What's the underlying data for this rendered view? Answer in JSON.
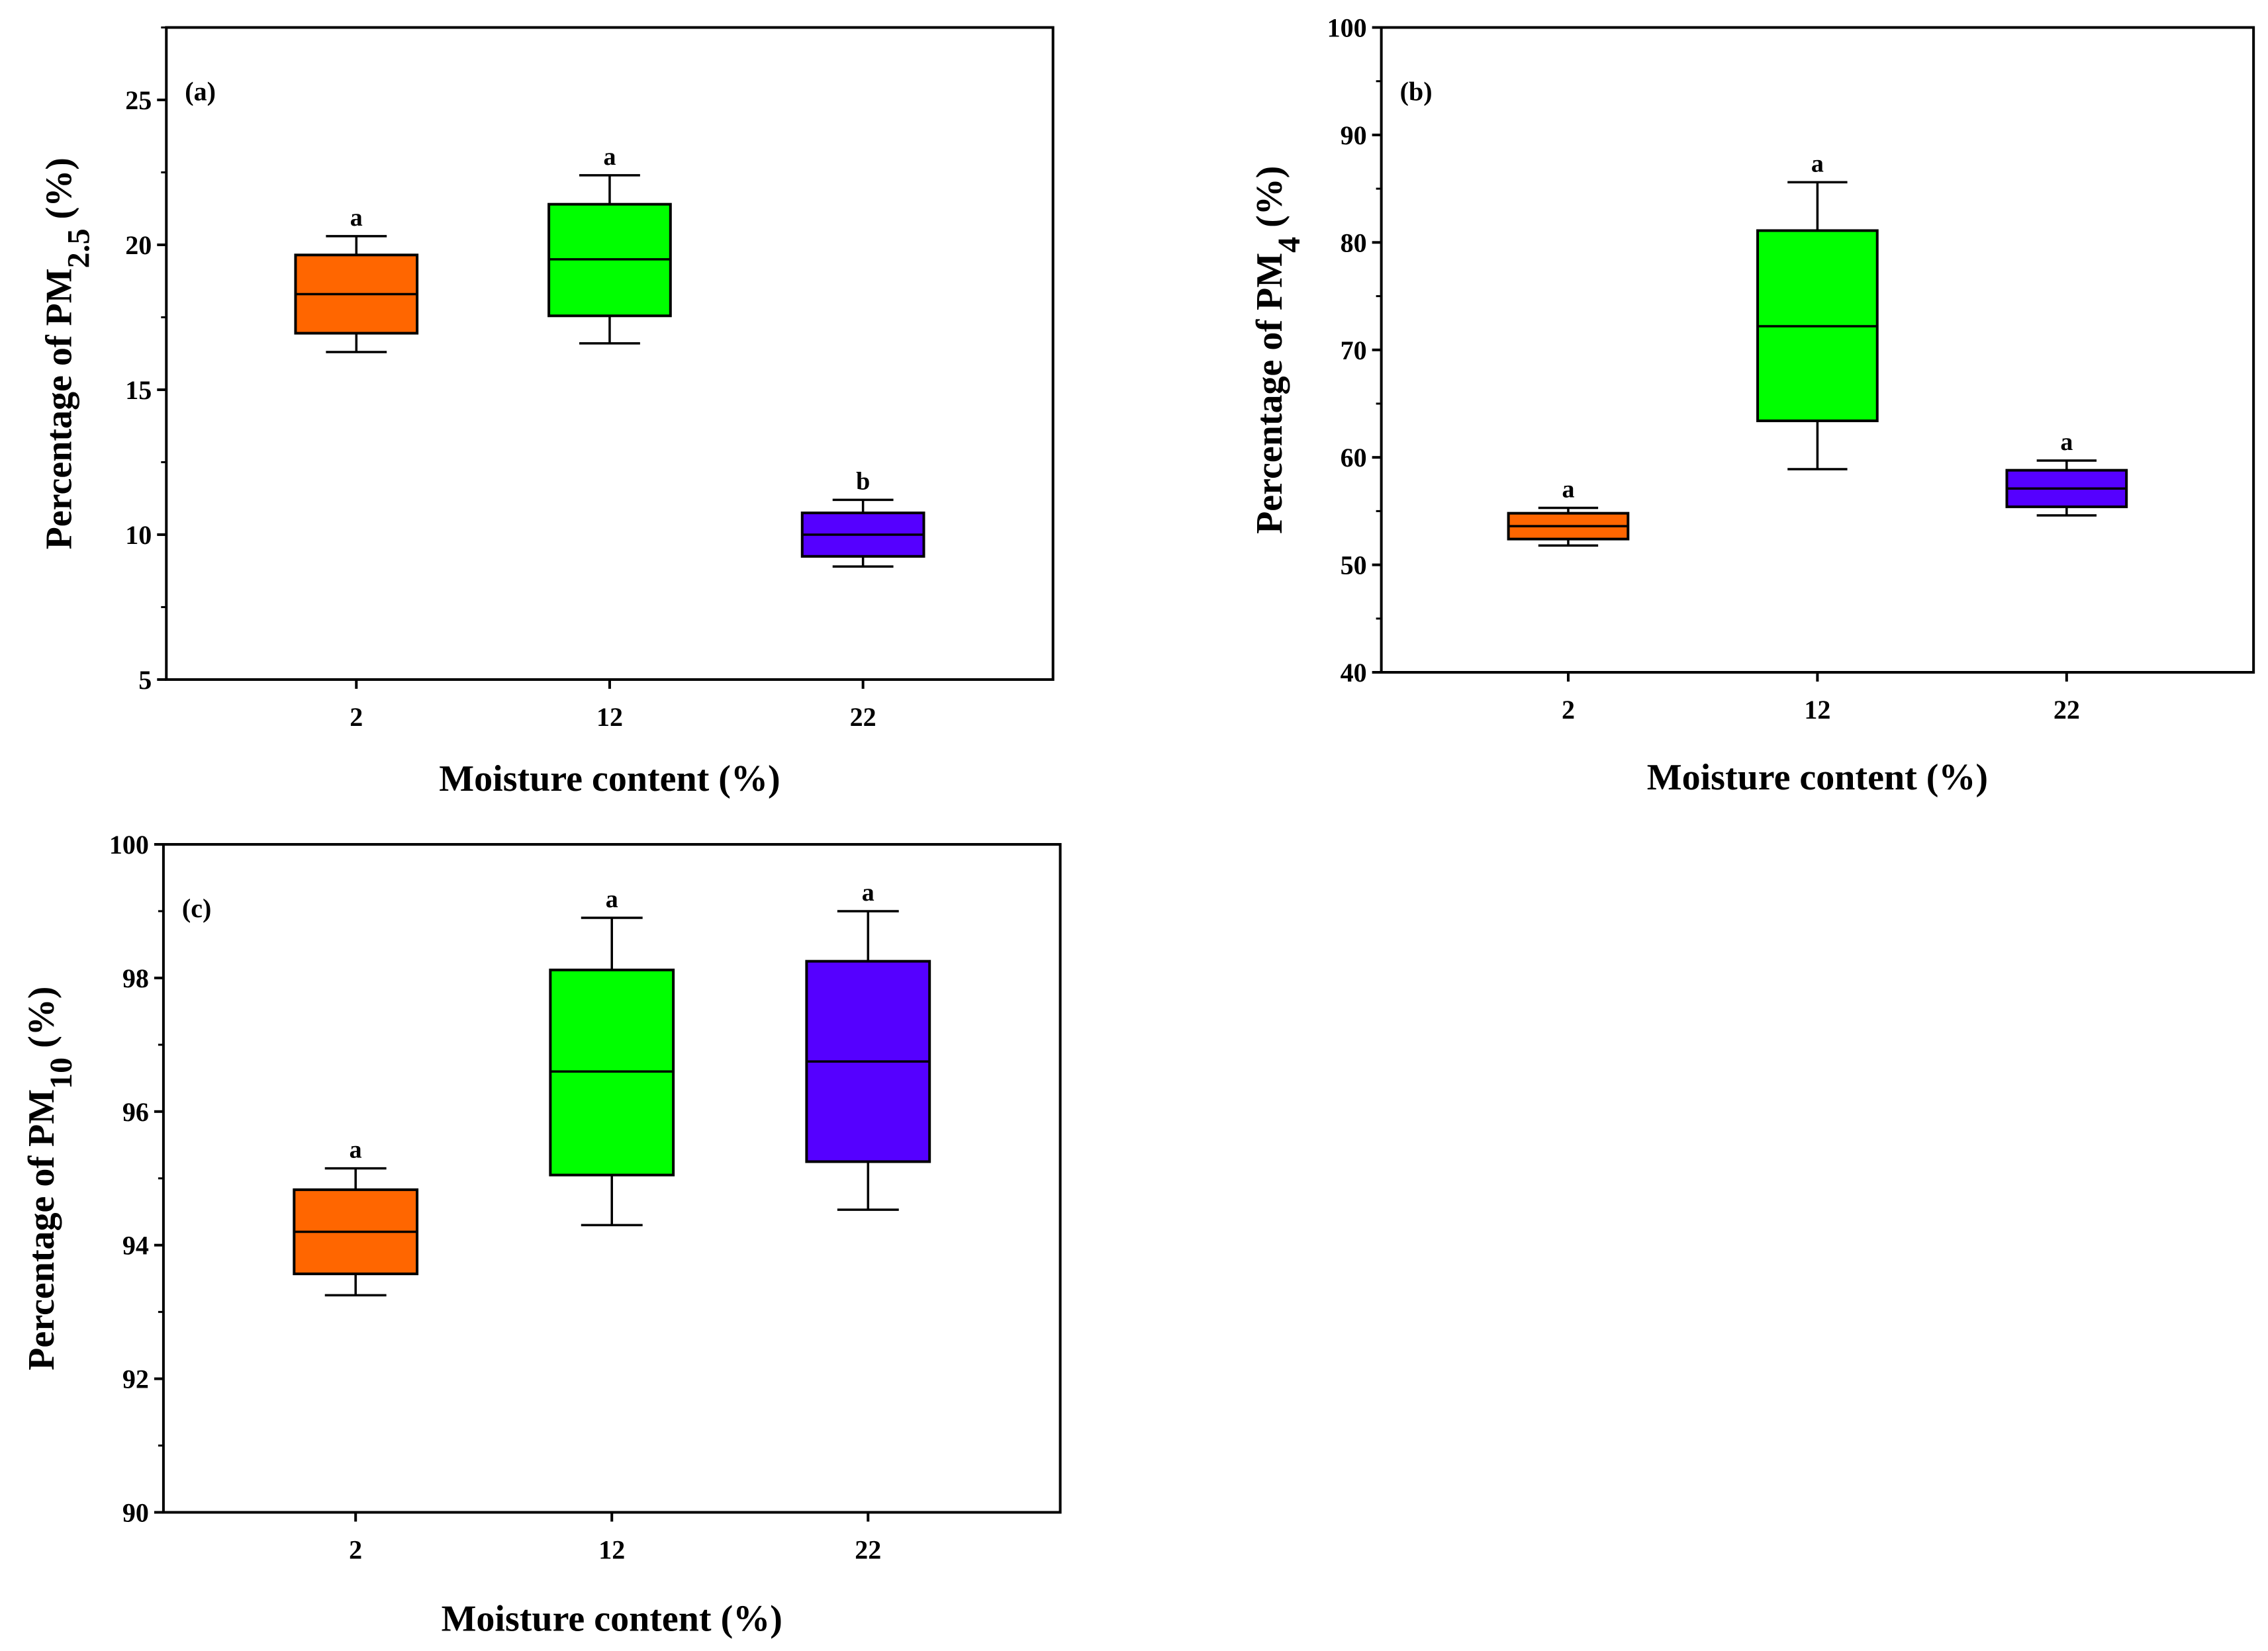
{
  "figure": {
    "background": "#ffffff"
  },
  "chart_data": [
    {
      "id": "a",
      "type": "box",
      "panel_label": "(a)",
      "title": "",
      "xlabel": "Moisture content (%)",
      "ylabel_prefix": "Percentage of  PM",
      "ylabel_sub": "2.5",
      "ylabel_suffix": " (%)",
      "ylim": [
        5,
        27.5
      ],
      "yticks": [
        5,
        10,
        15,
        20,
        25
      ],
      "yminor": [
        7.5,
        12.5,
        17.5,
        22.5,
        27.5
      ],
      "ytick_labels": [
        "5",
        "10",
        "15",
        "20",
        "25"
      ],
      "categories": [
        "2",
        "12",
        "22"
      ],
      "boxes": [
        {
          "category": "2",
          "min": 16.3,
          "q1": 16.95,
          "median": 18.3,
          "q3": 19.65,
          "max": 20.3,
          "letter": "a",
          "color": "#ff6600"
        },
        {
          "category": "12",
          "min": 16.6,
          "q1": 17.55,
          "median": 19.5,
          "q3": 21.4,
          "max": 22.4,
          "letter": "a",
          "color": "#00ff00"
        },
        {
          "category": "22",
          "min": 8.9,
          "q1": 9.25,
          "median": 10.0,
          "q3": 10.75,
          "max": 11.2,
          "letter": "b",
          "color": "#5500ff"
        }
      ]
    },
    {
      "id": "b",
      "type": "box",
      "panel_label": "(b)",
      "title": "",
      "xlabel": "Moisture content (%)",
      "ylabel_prefix": "Percentage of  PM",
      "ylabel_sub": "4",
      "ylabel_suffix": "  (%)",
      "ylim": [
        40,
        100
      ],
      "yticks": [
        40,
        50,
        60,
        70,
        80,
        90,
        100
      ],
      "yminor": [
        45,
        55,
        65,
        75,
        85,
        95
      ],
      "ytick_labels": [
        "40",
        "50",
        "60",
        "70",
        "80",
        "90",
        "100"
      ],
      "categories": [
        "2",
        "12",
        "22"
      ],
      "boxes": [
        {
          "category": "2",
          "min": 51.8,
          "q1": 52.4,
          "median": 53.6,
          "q3": 54.8,
          "max": 55.3,
          "letter": "a",
          "color": "#ff6600"
        },
        {
          "category": "12",
          "min": 58.9,
          "q1": 63.4,
          "median": 72.2,
          "q3": 81.1,
          "max": 85.6,
          "letter": "a",
          "color": "#00ff00"
        },
        {
          "category": "22",
          "min": 54.6,
          "q1": 55.4,
          "median": 57.1,
          "q3": 58.8,
          "max": 59.7,
          "letter": "a",
          "color": "#5500ff"
        }
      ]
    },
    {
      "id": "c",
      "type": "box",
      "panel_label": "(c)",
      "title": "",
      "xlabel": "Moisture content (%)",
      "ylabel_prefix": "Percentage of  PM",
      "ylabel_sub": "10",
      "ylabel_suffix": " (%)",
      "ylim": [
        90,
        100
      ],
      "yticks": [
        90,
        92,
        94,
        96,
        98,
        100
      ],
      "yminor": [
        91,
        93,
        95,
        97,
        99
      ],
      "ytick_labels": [
        "90",
        "92",
        "94",
        "96",
        "98",
        "100"
      ],
      "categories": [
        "2",
        "12",
        "22"
      ],
      "boxes": [
        {
          "category": "2",
          "min": 93.25,
          "q1": 93.57,
          "median": 94.2,
          "q3": 94.83,
          "max": 95.15,
          "letter": "a",
          "color": "#ff6600"
        },
        {
          "category": "12",
          "min": 94.3,
          "q1": 95.05,
          "median": 96.6,
          "q3": 98.12,
          "max": 98.9,
          "letter": "a",
          "color": "#00ff00"
        },
        {
          "category": "22",
          "min": 94.53,
          "q1": 95.25,
          "median": 96.75,
          "q3": 98.25,
          "max": 99.0,
          "letter": "a",
          "color": "#5500ff"
        }
      ]
    }
  ]
}
